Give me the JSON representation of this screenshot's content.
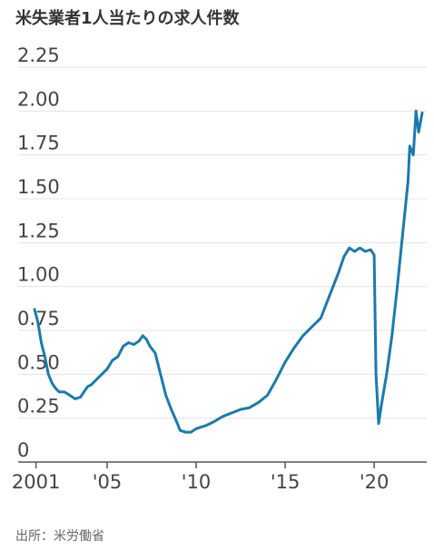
{
  "chart_data": {
    "type": "line",
    "title": "米失業者1人当たりの求人件数",
    "source": "出所：米労働省",
    "colors": {
      "line": "#1a7bab",
      "grid": "#e3e3e3",
      "axis": "#555555"
    },
    "ylim": [
      0,
      2.25
    ],
    "yticks": [
      "0",
      "0.25",
      "0.50",
      "0.75",
      "1.00",
      "1.25",
      "1.50",
      "1.75",
      "2.00",
      "2.25"
    ],
    "ytick_values": [
      0,
      0.25,
      0.5,
      0.75,
      1.0,
      1.25,
      1.5,
      1.75,
      2.0,
      2.25
    ],
    "xticks": [
      "2001",
      "'05",
      "'10",
      "'15",
      "'20"
    ],
    "xtick_values": [
      2001,
      2005,
      2010,
      2015,
      2020
    ],
    "xlim": [
      2000,
      2022.8
    ],
    "grid": true,
    "series": [
      {
        "x": [
          2000.92,
          2001.1,
          2001.3,
          2001.5,
          2001.7,
          2001.9,
          2002.1,
          2002.3,
          2002.6,
          2002.9,
          2003.2,
          2003.5,
          2003.7,
          2003.9,
          2004.1,
          2004.4,
          2004.7,
          2005.0,
          2005.3,
          2005.6,
          2005.9,
          2006.2,
          2006.5,
          2006.8,
          2007.0,
          2007.2,
          2007.4,
          2007.7,
          2008.0,
          2008.3,
          2008.6,
          2008.9,
          2009.1,
          2009.4,
          2009.7,
          2010.0,
          2010.3,
          2010.6,
          2011.0,
          2011.5,
          2012.0,
          2012.5,
          2013.0,
          2013.5,
          2014.0,
          2014.5,
          2015.0,
          2015.5,
          2016.0,
          2016.5,
          2017.0,
          2017.5,
          2018.0,
          2018.3,
          2018.6,
          2018.9,
          2019.2,
          2019.5,
          2019.8,
          2020.0,
          2020.1,
          2020.25,
          2020.4,
          2020.7,
          2021.0,
          2021.3,
          2021.6,
          2021.9,
          2022.0,
          2022.2,
          2022.35,
          2022.5,
          2022.7
        ],
        "values": [
          0.87,
          0.8,
          0.68,
          0.6,
          0.5,
          0.45,
          0.42,
          0.4,
          0.4,
          0.38,
          0.36,
          0.37,
          0.4,
          0.43,
          0.44,
          0.47,
          0.5,
          0.53,
          0.58,
          0.6,
          0.66,
          0.68,
          0.67,
          0.69,
          0.72,
          0.7,
          0.66,
          0.62,
          0.5,
          0.38,
          0.3,
          0.23,
          0.18,
          0.17,
          0.17,
          0.19,
          0.2,
          0.21,
          0.23,
          0.26,
          0.28,
          0.3,
          0.31,
          0.34,
          0.38,
          0.47,
          0.57,
          0.65,
          0.72,
          0.77,
          0.82,
          0.95,
          1.08,
          1.17,
          1.22,
          1.2,
          1.22,
          1.2,
          1.21,
          1.18,
          0.5,
          0.22,
          0.32,
          0.5,
          0.72,
          1.0,
          1.3,
          1.6,
          1.8,
          1.75,
          2.0,
          1.88,
          1.99
        ]
      }
    ]
  }
}
